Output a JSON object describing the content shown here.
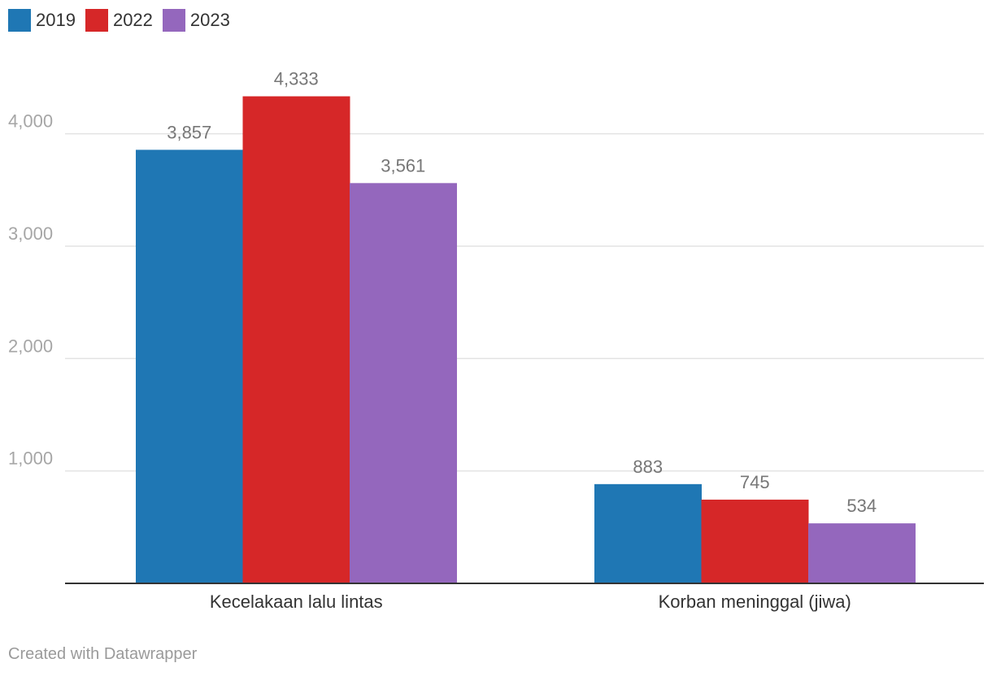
{
  "legend": [
    {
      "label": "2019",
      "color": "#1f77b4"
    },
    {
      "label": "2022",
      "color": "#d62728"
    },
    {
      "label": "2023",
      "color": "#9467bd"
    }
  ],
  "footer": {
    "credit": "Created with Datawrapper"
  },
  "chart_data": {
    "type": "bar",
    "categories": [
      "Kecelakaan lalu lintas",
      "Korban meninggal (jiwa)"
    ],
    "series": [
      {
        "name": "2019",
        "values": [
          3857,
          883
        ],
        "labels": [
          "3,857",
          "883"
        ],
        "color": "#1f77b4"
      },
      {
        "name": "2022",
        "values": [
          4333,
          745
        ],
        "labels": [
          "4,333",
          "745"
        ],
        "color": "#d62728"
      },
      {
        "name": "2023",
        "values": [
          3561,
          534
        ],
        "labels": [
          "3,561",
          "534"
        ],
        "color": "#9467bd"
      }
    ],
    "yticks": [
      {
        "value": 1000,
        "label": "1,000"
      },
      {
        "value": 2000,
        "label": "2,000"
      },
      {
        "value": 3000,
        "label": "3,000"
      },
      {
        "value": 4000,
        "label": "4,000"
      }
    ],
    "ylim": [
      0,
      4333
    ],
    "grid": true,
    "legend_position": "top-left"
  }
}
